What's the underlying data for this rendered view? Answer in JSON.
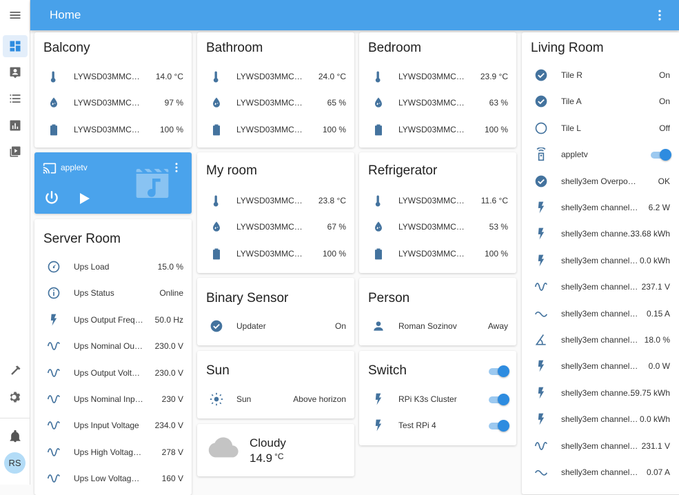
{
  "header": {
    "title": "Home"
  },
  "user": {
    "initials": "RS"
  },
  "colors": {
    "accent": "#48a1ea",
    "icon": "#44739e",
    "toggle": "#2e8ce0"
  },
  "balcony": {
    "title": "Balcony",
    "rows": [
      {
        "icon": "thermometer-icon",
        "name": "LYWSD03MMC_3 Te...",
        "value": "14.0 °C"
      },
      {
        "icon": "water-drop-icon",
        "name": "LYWSD03MMC_3 Humi...",
        "value": "97 %"
      },
      {
        "icon": "battery-icon",
        "name": "LYWSD03MMC_3 Batt...",
        "value": "100 %"
      }
    ]
  },
  "bathroom": {
    "title": "Bathroom",
    "rows": [
      {
        "icon": "thermometer-icon",
        "name": "LYWSD03MMC_1 Te...",
        "value": "24.0 °C"
      },
      {
        "icon": "water-drop-icon",
        "name": "LYWSD03MMC_1 Humi...",
        "value": "65 %"
      },
      {
        "icon": "battery-icon",
        "name": "LYWSD03MMC_1 Batt...",
        "value": "100 %"
      }
    ]
  },
  "bedroom": {
    "title": "Bedroom",
    "rows": [
      {
        "icon": "thermometer-icon",
        "name": "LYWSD03MMC_5 Te...",
        "value": "23.9 °C"
      },
      {
        "icon": "water-drop-icon",
        "name": "LYWSD03MMC_5 Humi...",
        "value": "63 %"
      },
      {
        "icon": "battery-icon",
        "name": "LYWSD03MMC_5 Batt...",
        "value": "100 %"
      }
    ]
  },
  "myroom": {
    "title": "My room",
    "rows": [
      {
        "icon": "thermometer-icon",
        "name": "LYWSD03MMC_4 Te...",
        "value": "23.8 °C"
      },
      {
        "icon": "water-drop-icon",
        "name": "LYWSD03MMC_4 Humi...",
        "value": "67 %"
      },
      {
        "icon": "battery-icon",
        "name": "LYWSD03MMC_4 Batt...",
        "value": "100 %"
      }
    ]
  },
  "refrigerator": {
    "title": "Refrigerator",
    "rows": [
      {
        "icon": "thermometer-icon",
        "name": "LYWSD03MMC_2 Te...",
        "value": "11.6 °C"
      },
      {
        "icon": "water-drop-icon",
        "name": "LYWSD03MMC_2 Humi...",
        "value": "53 %"
      },
      {
        "icon": "battery-icon",
        "name": "LYWSD03MMC_2 Batt...",
        "value": "100 %"
      }
    ]
  },
  "media": {
    "name": "appletv"
  },
  "server": {
    "title": "Server Room",
    "rows": [
      {
        "icon": "gauge-icon",
        "name": "Ups Load",
        "value": "15.0 %"
      },
      {
        "icon": "info-icon",
        "name": "Ups Status",
        "value": "Online"
      },
      {
        "icon": "flash-icon",
        "name": "Ups Output Frequency",
        "value": "50.0 Hz"
      },
      {
        "icon": "sine-wave-icon",
        "name": "Ups Nominal Output ...",
        "value": "230.0 V"
      },
      {
        "icon": "sine-wave-icon",
        "name": "Ups Output Voltage",
        "value": "230.0 V"
      },
      {
        "icon": "sine-wave-icon",
        "name": "Ups Nominal Input Volt...",
        "value": "230 V"
      },
      {
        "icon": "sine-wave-icon",
        "name": "Ups Input Voltage",
        "value": "234.0 V"
      },
      {
        "icon": "sine-wave-icon",
        "name": "Ups High Voltage Tran...",
        "value": "278 V"
      },
      {
        "icon": "sine-wave-icon",
        "name": "Ups Low Voltage Trans...",
        "value": "160 V"
      }
    ]
  },
  "binary": {
    "title": "Binary Sensor",
    "rows": [
      {
        "icon": "check-circle-icon",
        "name": "Updater",
        "value": "On"
      }
    ]
  },
  "person": {
    "title": "Person",
    "rows": [
      {
        "icon": "person-icon",
        "name": "Roman Sozinov",
        "value": "Away"
      }
    ]
  },
  "sun": {
    "title": "Sun",
    "rows": [
      {
        "icon": "sun-icon",
        "name": "Sun",
        "value": "Above horizon"
      }
    ]
  },
  "switch": {
    "title": "Switch",
    "rows": [
      {
        "icon": "flash-icon",
        "name": "RPi K3s Cluster",
        "on": true
      },
      {
        "icon": "flash-icon",
        "name": "Test RPi 4",
        "on": true
      }
    ]
  },
  "weather": {
    "condition": "Cloudy",
    "temp": "14.9",
    "unit": "°C"
  },
  "living": {
    "title": "Living Room",
    "rows": [
      {
        "icon": "check-circle-icon",
        "name": "Tile R",
        "value": "On"
      },
      {
        "icon": "check-circle-icon",
        "name": "Tile A",
        "value": "On"
      },
      {
        "icon": "circle-outline-icon",
        "name": "Tile L",
        "value": "Off"
      },
      {
        "icon": "remote-icon",
        "name": "appletv",
        "toggle": true
      },
      {
        "icon": "check-circle-icon",
        "name": "shelly3em Overpowering",
        "value": "OK"
      },
      {
        "icon": "flash-icon",
        "name": "shelly3em channel A P...",
        "value": "6.2 W"
      },
      {
        "icon": "flash-icon",
        "name": "shelly3em channe...",
        "value": "33.68 kWh"
      },
      {
        "icon": "flash-icon",
        "name": "shelly3em channel A...",
        "value": "0.0 kWh"
      },
      {
        "icon": "sine-wave-icon",
        "name": "shelly3em channel A ...",
        "value": "237.1 V"
      },
      {
        "icon": "current-ac-icon",
        "name": "shelly3em channel A ...",
        "value": "0.15 A"
      },
      {
        "icon": "angle-icon",
        "name": "shelly3em channel A ...",
        "value": "18.0 %"
      },
      {
        "icon": "flash-icon",
        "name": "shelly3em channel B P...",
        "value": "0.0 W"
      },
      {
        "icon": "flash-icon",
        "name": "shelly3em channe...",
        "value": "59.75 kWh"
      },
      {
        "icon": "flash-icon",
        "name": "shelly3em channel B...",
        "value": "0.0 kWh"
      },
      {
        "icon": "sine-wave-icon",
        "name": "shelly3em channel B ...",
        "value": "231.1 V"
      },
      {
        "icon": "current-ac-icon",
        "name": "shelly3em channel B C...",
        "value": "0.07 A"
      }
    ]
  }
}
